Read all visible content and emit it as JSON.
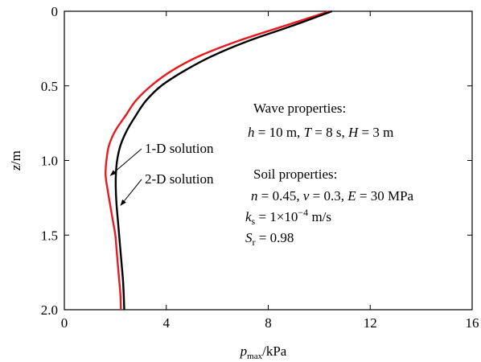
{
  "chart_data": {
    "type": "line",
    "xlabel": {
      "main": "p",
      "sub": "max",
      "unit": "/kPa"
    },
    "ylabel": {
      "var": "z",
      "unit": "/m"
    },
    "xlim": [
      0,
      16
    ],
    "ylim": [
      2.0,
      0
    ],
    "y_inverted": true,
    "x_ticks": [
      "0",
      "4",
      "8",
      "12",
      "16"
    ],
    "x_tick_values": [
      0,
      4,
      8,
      12,
      16
    ],
    "y_ticks": [
      "0",
      "0.5",
      "1.0",
      "1.5",
      "2.0"
    ],
    "y_tick_values": [
      0,
      0.5,
      1.0,
      1.5,
      2.0
    ],
    "grid": false,
    "series": [
      {
        "name": "1-D solution",
        "color": "#e8191f",
        "points": [
          [
            10.4,
            0.0
          ],
          [
            8.6,
            0.1
          ],
          [
            6.8,
            0.2
          ],
          [
            5.3,
            0.3
          ],
          [
            4.2,
            0.4
          ],
          [
            3.4,
            0.5
          ],
          [
            2.8,
            0.6
          ],
          [
            2.4,
            0.7
          ],
          [
            2.0,
            0.8
          ],
          [
            1.75,
            0.9
          ],
          [
            1.65,
            1.0
          ],
          [
            1.62,
            1.1
          ],
          [
            1.7,
            1.2
          ],
          [
            1.8,
            1.3
          ],
          [
            1.9,
            1.4
          ],
          [
            2.0,
            1.5
          ],
          [
            2.05,
            1.6
          ],
          [
            2.1,
            1.7
          ],
          [
            2.15,
            1.8
          ],
          [
            2.2,
            1.9
          ],
          [
            2.22,
            2.0
          ]
        ]
      },
      {
        "name": "2-D solution",
        "color": "#000000",
        "points": [
          [
            10.5,
            0.0
          ],
          [
            8.9,
            0.1
          ],
          [
            7.2,
            0.2
          ],
          [
            5.8,
            0.3
          ],
          [
            4.7,
            0.4
          ],
          [
            3.8,
            0.5
          ],
          [
            3.2,
            0.6
          ],
          [
            2.8,
            0.7
          ],
          [
            2.45,
            0.8
          ],
          [
            2.2,
            0.9
          ],
          [
            2.07,
            1.0
          ],
          [
            2.02,
            1.1
          ],
          [
            2.02,
            1.2
          ],
          [
            2.05,
            1.3
          ],
          [
            2.1,
            1.4
          ],
          [
            2.15,
            1.5
          ],
          [
            2.2,
            1.6
          ],
          [
            2.25,
            1.7
          ],
          [
            2.3,
            1.8
          ],
          [
            2.33,
            1.9
          ],
          [
            2.35,
            2.0
          ]
        ]
      }
    ],
    "series_labels": [
      {
        "text": "1-D solution",
        "arrow_to": [
          1.75,
          1.1
        ]
      },
      {
        "text": "2-D solution",
        "arrow_to": [
          2.15,
          1.3
        ]
      }
    ],
    "annotations": {
      "wave_title": "Wave properties:",
      "wave_line": [
        {
          "t": "h",
          "s": "it"
        },
        {
          "t": " = 10 m, "
        },
        {
          "t": "T",
          "s": "it"
        },
        {
          "t": " = 8 s, "
        },
        {
          "t": "H",
          "s": "it"
        },
        {
          "t": " = 3 m"
        }
      ],
      "soil_title": "Soil properties:",
      "soil_line1": [
        {
          "t": "n",
          "s": "it"
        },
        {
          "t": " = 0.45, "
        },
        {
          "t": "v",
          "s": "it"
        },
        {
          "t": " = 0.3, "
        },
        {
          "t": "E",
          "s": "it"
        },
        {
          "t": " = 30 MPa"
        }
      ],
      "soil_line2": [
        {
          "t": "k",
          "s": "it"
        },
        {
          "t": "s",
          "s": "sub"
        },
        {
          "t": " = 1×10"
        },
        {
          "t": "−4",
          "s": "sup"
        },
        {
          "t": " m/s"
        }
      ],
      "soil_line3": [
        {
          "t": "S",
          "s": "it"
        },
        {
          "t": "r",
          "s": "sub"
        },
        {
          "t": " = 0.98"
        }
      ]
    }
  }
}
